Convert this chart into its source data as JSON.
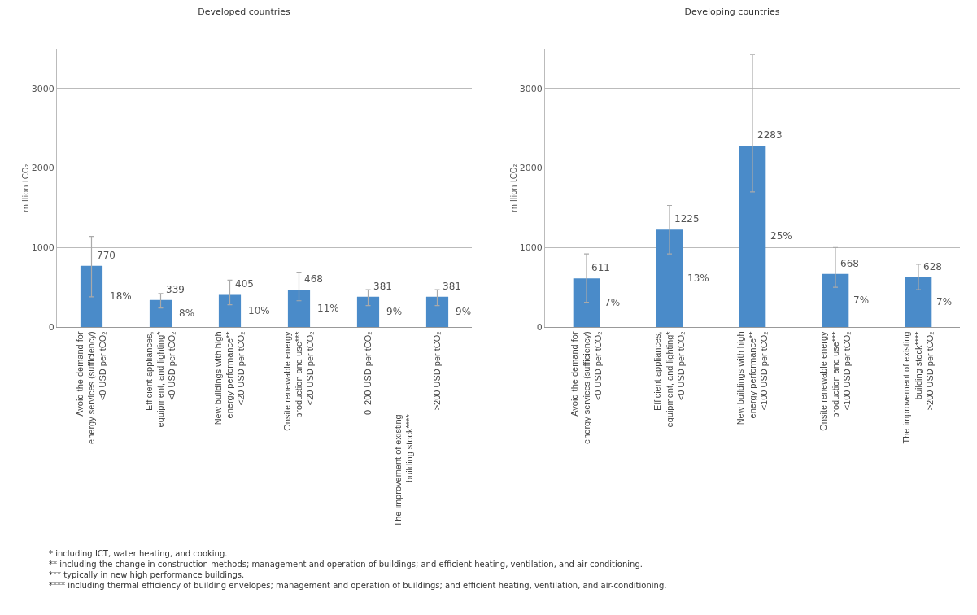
{
  "chart_data": [
    {
      "type": "bar",
      "title": "Developed countries",
      "ylabel": "million tCO₂",
      "categories": [
        "Avoid the demand for\nenergy services (sufficiency)\n<0 USD per tCO₂",
        "Efficient appliances,\nequipment, and lighting*\n<0 USD per tCO₂",
        "New buildings with high\nenergy performance**\n<20 USD per tCO₂",
        "Onsite renewable energy\nproduction and use***\n<20 USD per tCO₂",
        "0–200 USD per tCO₂",
        ">200 USD per tCO₂"
      ],
      "values": [
        770,
        339,
        405,
        468,
        381,
        381
      ],
      "color": "#4a8bc9",
      "errors": [
        [
          380,
          1140
        ],
        [
          240,
          420
        ],
        [
          280,
          590
        ],
        [
          330,
          690
        ],
        [
          270,
          470
        ],
        [
          270,
          470
        ]
      ],
      "data_labels": true,
      "ylim": [
        0,
        3500
      ],
      "yticks": [
        0,
        1000,
        2000,
        3000
      ],
      "grid": "y",
      "annotations": [
        "18%",
        "8%",
        "10%",
        "11%",
        "9%",
        "9%",
        "The improvement of existing\nbuilding stock****"
      ]
    },
    {
      "type": "bar",
      "title": "Developing countries",
      "ylabel": "million tCO₂",
      "categories": [
        "Avoid the demand for\nenergy services (sufficiency)\n<0 USD per tCO₂",
        "Efficient appliances,\nequipment, and lighting*\n<0 USD per tCO₂",
        "New buildings with high\nenergy performance**\n<100 USD per tCO₂",
        "Onsite renewable energy\nproduction and use***\n<100 USD per tCO₂",
        "The improvement of existing\nbuilding stock****\n>200 USD per tCO₂"
      ],
      "values": [
        611,
        1225,
        2283,
        668,
        628
      ],
      "color": "#4a8bc9",
      "errors": [
        [
          310,
          920
        ],
        [
          920,
          1530
        ],
        [
          1700,
          3430
        ],
        [
          500,
          1000
        ],
        [
          470,
          790
        ]
      ],
      "data_labels": true,
      "ylim": [
        0,
        3500
      ],
      "yticks": [
        0,
        1000,
        2000,
        3000
      ],
      "grid": "y",
      "annotations": [
        "7%",
        "13%",
        "25%",
        "7%",
        "7%"
      ]
    },
    {
      "type": "other",
      "annotations": [
        "* including ICT, water heating, and cooking.",
        "** including the change in construction methods;  management and operation of buildings; and efficient heating, ventilation, and air-conditioning.",
        "*** typically in new high performance buildings.",
        "**** including thermal efficiency of building envelopes; management and operation of buildings; and efficient heating, ventilation, and air-conditioning."
      ]
    }
  ]
}
